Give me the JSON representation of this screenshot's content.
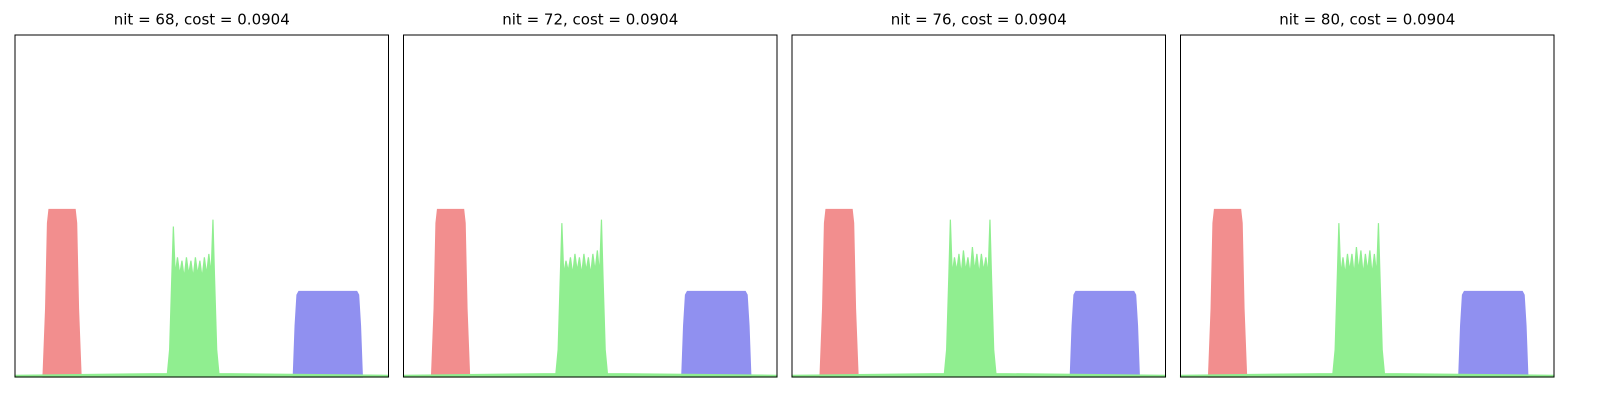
{
  "chart_data": [
    {
      "type": "area",
      "title": "nit = 68, cost = 0.0904",
      "xlim": [
        0,
        100
      ],
      "ylim": [
        0,
        1
      ],
      "series": [
        {
          "color": "#f28e8e",
          "x": [
            7.5,
            8.2,
            8.7,
            9.1,
            16.1,
            16.5,
            17.0,
            17.7
          ],
          "values": [
            0,
            0.2,
            0.45,
            0.49,
            0.49,
            0.45,
            0.2,
            0
          ]
        },
        {
          "color": "#9090f0",
          "x": [
            74.5,
            75.0,
            75.5,
            76.0,
            91.5,
            92.0,
            92.5,
            93.0
          ],
          "values": [
            0,
            0.15,
            0.24,
            0.25,
            0.25,
            0.24,
            0.15,
            0
          ]
        },
        {
          "color": "#90ee90",
          "x": [
            0,
            40.8,
            41.4,
            42.0,
            42.4,
            42.9,
            43.5,
            44.1,
            44.7,
            45.3,
            45.9,
            46.5,
            47.1,
            47.7,
            48.3,
            48.9,
            49.5,
            50.1,
            50.7,
            51.3,
            51.9,
            52.5,
            53.0,
            53.4,
            54.0,
            54.6,
            100
          ],
          "values": [
            0.005,
            0.01,
            0.08,
            0.3,
            0.44,
            0.3,
            0.35,
            0.3,
            0.34,
            0.29,
            0.35,
            0.3,
            0.34,
            0.29,
            0.35,
            0.3,
            0.34,
            0.29,
            0.35,
            0.3,
            0.36,
            0.3,
            0.46,
            0.3,
            0.08,
            0.01,
            0.005
          ]
        }
      ]
    },
    {
      "type": "area",
      "title": "nit = 72, cost = 0.0904",
      "xlim": [
        0,
        100
      ],
      "ylim": [
        0,
        1
      ],
      "series": [
        {
          "color": "#f28e8e",
          "x": [
            7.5,
            8.2,
            8.7,
            9.1,
            16.1,
            16.5,
            17.0,
            17.7
          ],
          "values": [
            0,
            0.2,
            0.45,
            0.49,
            0.49,
            0.45,
            0.2,
            0
          ]
        },
        {
          "color": "#9090f0",
          "x": [
            74.5,
            75.0,
            75.5,
            76.0,
            91.5,
            92.0,
            92.5,
            93.0
          ],
          "values": [
            0,
            0.15,
            0.24,
            0.25,
            0.25,
            0.24,
            0.15,
            0
          ]
        },
        {
          "color": "#90ee90",
          "x": [
            0,
            40.8,
            41.4,
            42.0,
            42.4,
            42.9,
            43.5,
            44.1,
            44.7,
            45.3,
            45.9,
            46.5,
            47.1,
            47.7,
            48.3,
            48.9,
            49.5,
            50.1,
            50.7,
            51.3,
            51.9,
            52.5,
            53.0,
            53.4,
            54.0,
            54.6,
            100
          ],
          "values": [
            0.005,
            0.01,
            0.08,
            0.3,
            0.45,
            0.3,
            0.34,
            0.31,
            0.35,
            0.3,
            0.36,
            0.31,
            0.35,
            0.3,
            0.36,
            0.31,
            0.35,
            0.3,
            0.36,
            0.31,
            0.37,
            0.3,
            0.46,
            0.3,
            0.08,
            0.01,
            0.005
          ]
        }
      ]
    },
    {
      "type": "area",
      "title": "nit = 76, cost = 0.0904",
      "xlim": [
        0,
        100
      ],
      "ylim": [
        0,
        1
      ],
      "series": [
        {
          "color": "#f28e8e",
          "x": [
            7.5,
            8.2,
            8.7,
            9.1,
            16.1,
            16.5,
            17.0,
            17.7
          ],
          "values": [
            0,
            0.2,
            0.45,
            0.49,
            0.49,
            0.45,
            0.2,
            0
          ]
        },
        {
          "color": "#9090f0",
          "x": [
            74.5,
            75.0,
            75.5,
            76.0,
            91.5,
            92.0,
            92.5,
            93.0
          ],
          "values": [
            0,
            0.15,
            0.24,
            0.25,
            0.25,
            0.24,
            0.15,
            0
          ]
        },
        {
          "color": "#90ee90",
          "x": [
            0,
            40.8,
            41.4,
            42.0,
            42.4,
            42.9,
            43.5,
            44.1,
            44.7,
            45.3,
            45.9,
            46.5,
            47.1,
            47.7,
            48.3,
            48.9,
            49.5,
            50.1,
            50.7,
            51.3,
            51.9,
            52.5,
            53.0,
            53.4,
            54.0,
            54.6,
            100
          ],
          "values": [
            0.005,
            0.01,
            0.08,
            0.3,
            0.46,
            0.3,
            0.35,
            0.31,
            0.36,
            0.3,
            0.37,
            0.31,
            0.35,
            0.3,
            0.38,
            0.31,
            0.36,
            0.3,
            0.36,
            0.31,
            0.35,
            0.3,
            0.46,
            0.3,
            0.08,
            0.01,
            0.005
          ]
        }
      ]
    },
    {
      "type": "area",
      "title": "nit = 80, cost = 0.0904",
      "xlim": [
        0,
        100
      ],
      "ylim": [
        0,
        1
      ],
      "series": [
        {
          "color": "#f28e8e",
          "x": [
            7.5,
            8.2,
            8.7,
            9.1,
            16.1,
            16.5,
            17.0,
            17.7
          ],
          "values": [
            0,
            0.2,
            0.45,
            0.49,
            0.49,
            0.45,
            0.2,
            0
          ]
        },
        {
          "color": "#9090f0",
          "x": [
            74.5,
            75.0,
            75.5,
            76.0,
            91.5,
            92.0,
            92.5,
            93.0
          ],
          "values": [
            0,
            0.15,
            0.24,
            0.25,
            0.25,
            0.24,
            0.15,
            0
          ]
        },
        {
          "color": "#90ee90",
          "x": [
            0,
            40.8,
            41.4,
            42.0,
            42.4,
            42.9,
            43.5,
            44.1,
            44.7,
            45.3,
            45.9,
            46.5,
            47.1,
            47.7,
            48.3,
            48.9,
            49.5,
            50.1,
            50.7,
            51.3,
            51.9,
            52.5,
            53.0,
            53.4,
            54.0,
            54.6,
            100
          ],
          "values": [
            0.005,
            0.01,
            0.08,
            0.3,
            0.45,
            0.3,
            0.35,
            0.3,
            0.36,
            0.31,
            0.36,
            0.3,
            0.38,
            0.31,
            0.37,
            0.3,
            0.36,
            0.31,
            0.37,
            0.3,
            0.36,
            0.3,
            0.45,
            0.3,
            0.08,
            0.01,
            0.005
          ]
        }
      ]
    }
  ]
}
